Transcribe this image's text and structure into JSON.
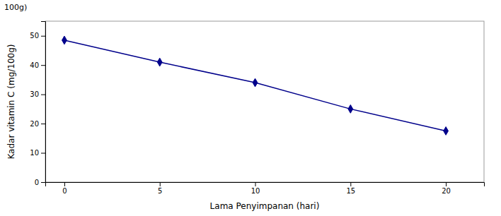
{
  "chart_data": {
    "type": "line",
    "annotations": [
      "100g)"
    ],
    "x_label": "Lama Penyimpanan (hari)",
    "y_label": "Kadar vitamin C (mg/100g)",
    "x": [
      0,
      5,
      10,
      15,
      20
    ],
    "values": [
      48.5,
      41.0,
      34.0,
      25.0,
      17.5
    ],
    "color": "#00008B",
    "marker": "diamond",
    "xlim": [
      -1,
      22
    ],
    "ylim": [
      0,
      55
    ],
    "xticks": [
      0,
      5,
      10,
      15,
      20
    ],
    "yticks": [
      0,
      10,
      20,
      30,
      40,
      50
    ],
    "grid": false
  }
}
